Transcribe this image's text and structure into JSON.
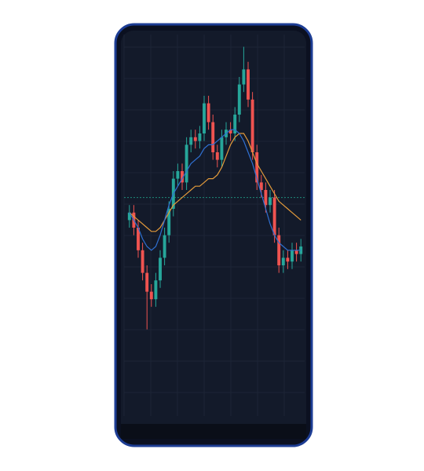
{
  "chart_data": {
    "type": "candlestick",
    "ylim": [
      0,
      100
    ],
    "up_color": "#26a69a",
    "down_color": "#ef5350",
    "grid": true,
    "hline": 58,
    "hline_color": "#1f8a7a",
    "open": [
      52,
      54,
      50,
      44,
      38,
      33,
      31,
      36,
      42,
      48,
      55,
      63,
      65,
      62,
      72,
      74,
      73,
      75,
      83,
      78,
      70,
      68,
      74,
      76,
      75,
      80,
      88,
      92,
      84,
      70,
      62,
      60,
      56,
      58,
      48,
      40,
      42,
      41,
      44,
      43
    ],
    "high": [
      56,
      56,
      52,
      46,
      40,
      35,
      38,
      44,
      50,
      57,
      65,
      67,
      67,
      74,
      76,
      76,
      77,
      85,
      85,
      80,
      72,
      76,
      78,
      78,
      82,
      90,
      98,
      94,
      86,
      72,
      64,
      62,
      60,
      60,
      50,
      44,
      44,
      46,
      46,
      47
    ],
    "low": [
      50,
      48,
      42,
      36,
      23,
      29,
      29,
      34,
      40,
      46,
      53,
      61,
      60,
      60,
      70,
      71,
      71,
      73,
      76,
      68,
      66,
      66,
      72,
      73,
      73,
      78,
      86,
      82,
      68,
      60,
      58,
      54,
      54,
      46,
      38,
      38,
      39,
      39,
      41,
      41
    ],
    "close": [
      54,
      50,
      44,
      38,
      33,
      31,
      36,
      42,
      48,
      55,
      63,
      65,
      62,
      72,
      74,
      73,
      75,
      83,
      78,
      70,
      68,
      74,
      76,
      75,
      80,
      88,
      92,
      84,
      70,
      62,
      60,
      56,
      58,
      48,
      40,
      42,
      41,
      44,
      43,
      45
    ],
    "series": [
      {
        "color": "#e39a3b",
        "values": [
          54,
          53,
          52,
          51,
          50,
          49,
          49,
          50,
          52,
          54,
          56,
          57,
          58,
          59,
          60,
          61,
          61,
          62,
          63,
          63,
          64,
          66,
          69,
          72,
          74,
          75,
          75,
          73,
          70,
          67,
          65,
          63,
          61,
          59,
          57,
          56,
          55,
          54,
          53,
          52
        ]
      },
      {
        "color": "#2f6fd0",
        "values": [
          54,
          52,
          50,
          47,
          45,
          44,
          45,
          48,
          52,
          56,
          59,
          61,
          63,
          65,
          67,
          68,
          69,
          71,
          72,
          72,
          73,
          74,
          75,
          76,
          76,
          75,
          73,
          70,
          67,
          63,
          59,
          55,
          51,
          48,
          46,
          45,
          44,
          44,
          44,
          44
        ]
      }
    ]
  }
}
